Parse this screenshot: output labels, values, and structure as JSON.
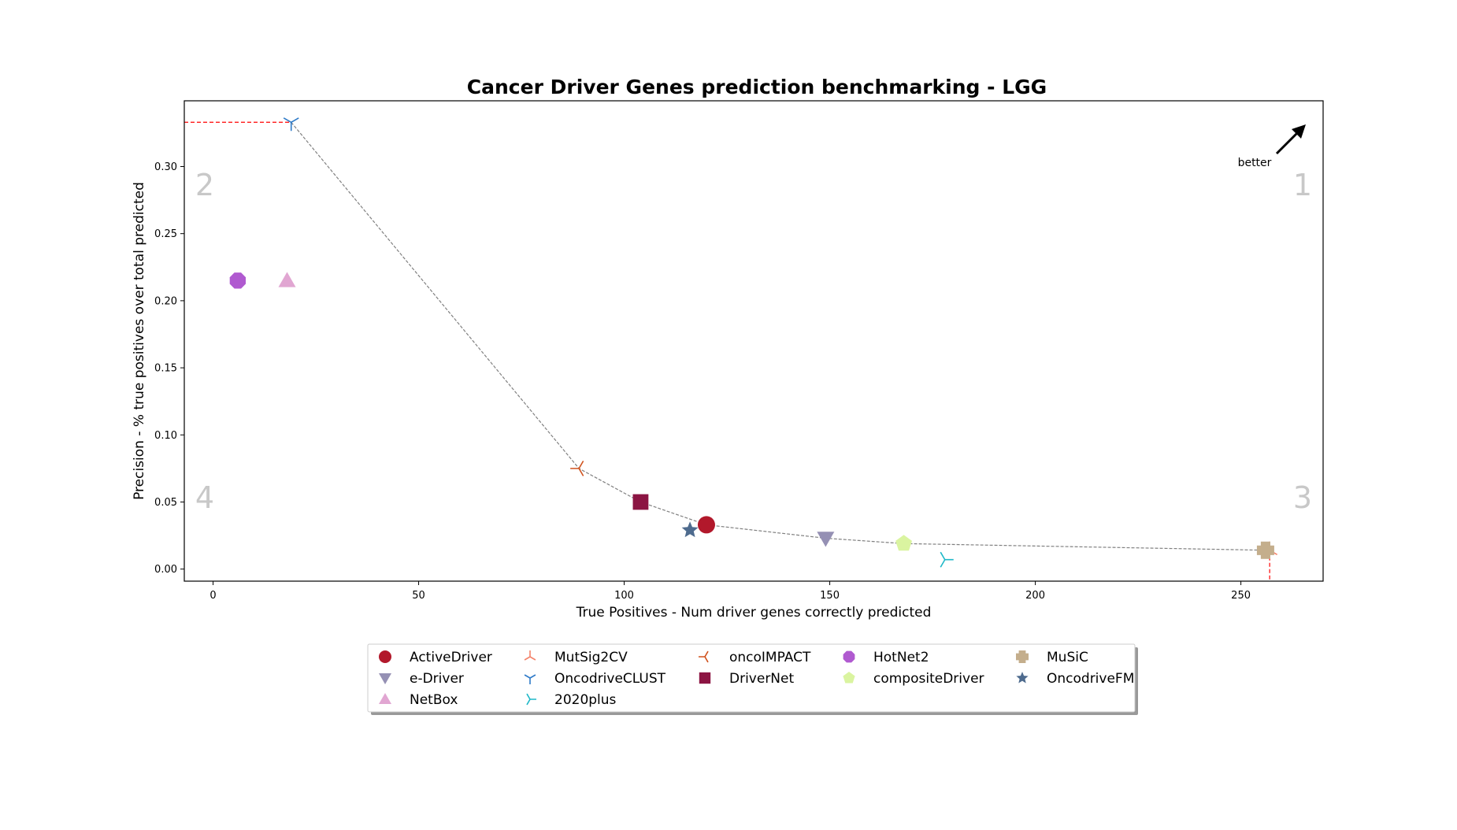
{
  "chart_data": {
    "type": "scatter",
    "title": "Cancer Driver Genes prediction benchmarking - LGG",
    "xlabel": "True Positives - Num driver genes correctly predicted",
    "ylabel": "Precision - % true positives over total predicted",
    "xlim": [
      -7,
      270
    ],
    "ylim": [
      -0.009,
      0.349
    ],
    "xticks": [
      0,
      50,
      100,
      150,
      200,
      250
    ],
    "yticks": [
      0.0,
      0.05,
      0.1,
      0.15,
      0.2,
      0.25,
      0.3
    ],
    "ytick_labels": [
      "0.00",
      "0.05",
      "0.10",
      "0.15",
      "0.20",
      "0.25",
      "0.30"
    ],
    "quadrant_labels": [
      "1",
      "2",
      "3",
      "4"
    ],
    "better_label": "better",
    "legend_position": "below",
    "series": [
      {
        "name": "ActiveDriver",
        "x": 120,
        "y": 0.033,
        "marker": "circle",
        "color": "#b2182b"
      },
      {
        "name": "MutSig2CV",
        "x": 257,
        "y": 0.014,
        "marker": "tri-down",
        "color": "#f4836b"
      },
      {
        "name": "oncoIMPACT",
        "x": 89,
        "y": 0.075,
        "marker": "tri-right",
        "color": "#d0521d"
      },
      {
        "name": "HotNet2",
        "x": 6,
        "y": 0.215,
        "marker": "octagon",
        "color": "#b05ad0"
      },
      {
        "name": "MuSiC",
        "x": 256,
        "y": 0.014,
        "marker": "plus",
        "color": "#c4ae8c"
      },
      {
        "name": "e-Driver",
        "x": 149,
        "y": 0.023,
        "marker": "triangle-down",
        "color": "#9590b4"
      },
      {
        "name": "OncodriveCLUST",
        "x": 19,
        "y": 0.333,
        "marker": "tri-up",
        "color": "#2f7bc8"
      },
      {
        "name": "DriverNet",
        "x": 104,
        "y": 0.05,
        "marker": "square",
        "color": "#8c1543"
      },
      {
        "name": "compositeDriver",
        "x": 168,
        "y": 0.019,
        "marker": "pentagon",
        "color": "#daf4a0"
      },
      {
        "name": "OncodriveFM",
        "x": 116,
        "y": 0.029,
        "marker": "star",
        "color": "#4e6b8e"
      },
      {
        "name": "NetBox",
        "x": 18,
        "y": 0.215,
        "marker": "triangle-up",
        "color": "#e1a6d2"
      },
      {
        "name": "2020plus",
        "x": 178,
        "y": 0.007,
        "marker": "tri-left",
        "color": "#1fb8c8"
      }
    ],
    "pareto_front": [
      {
        "x": 19,
        "y": 0.333
      },
      {
        "x": 89,
        "y": 0.075
      },
      {
        "x": 104,
        "y": 0.05
      },
      {
        "x": 120,
        "y": 0.033
      },
      {
        "x": 149,
        "y": 0.023
      },
      {
        "x": 168,
        "y": 0.019
      },
      {
        "x": 257,
        "y": 0.014
      }
    ],
    "frontier_color": "#808080",
    "limit_line_color": "#ff0000"
  }
}
